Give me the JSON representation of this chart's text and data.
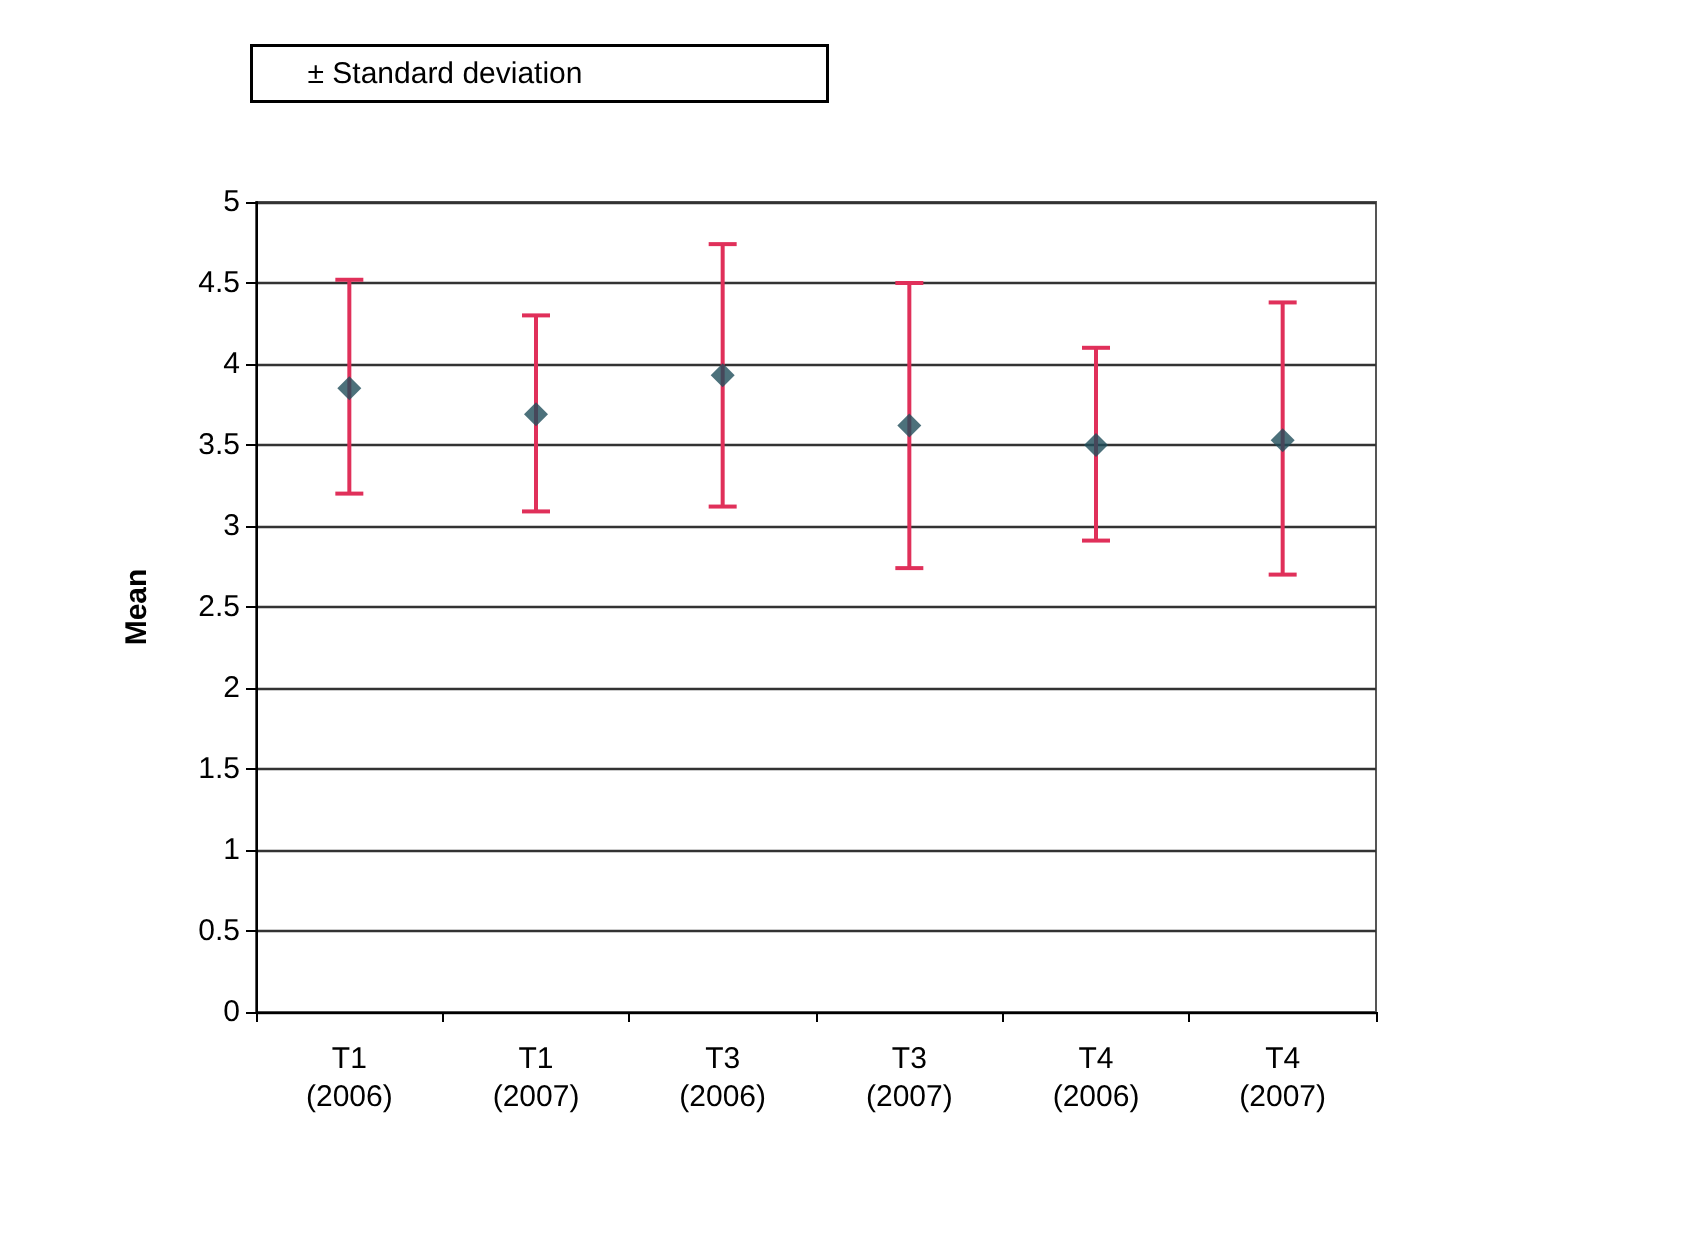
{
  "chart_data": {
    "type": "scatter",
    "ylabel": "Mean",
    "annotations": [
      "± Standard deviation"
    ],
    "categories": [
      "T1\n(2006)",
      "T1\n(2007)",
      "T3\n(2006)",
      "T3\n(2007)",
      "T4\n(2006)",
      "T4\n(2007)"
    ],
    "series": [
      {
        "color": "#1f4e5a",
        "values": [
          3.85,
          3.69,
          3.93,
          3.62,
          3.5,
          3.53
        ],
        "errors": [
          [
            3.2,
            4.52
          ],
          [
            3.09,
            4.3
          ],
          [
            3.12,
            4.74
          ],
          [
            2.74,
            4.5
          ],
          [
            2.91,
            4.1
          ],
          [
            2.7,
            4.38
          ]
        ]
      }
    ],
    "ylim": [
      0,
      5
    ],
    "yticks": [
      0,
      0.5,
      1,
      1.5,
      2,
      2.5,
      3,
      3.5,
      4,
      4.5,
      5
    ],
    "grid": "y",
    "marker": "diamond"
  }
}
